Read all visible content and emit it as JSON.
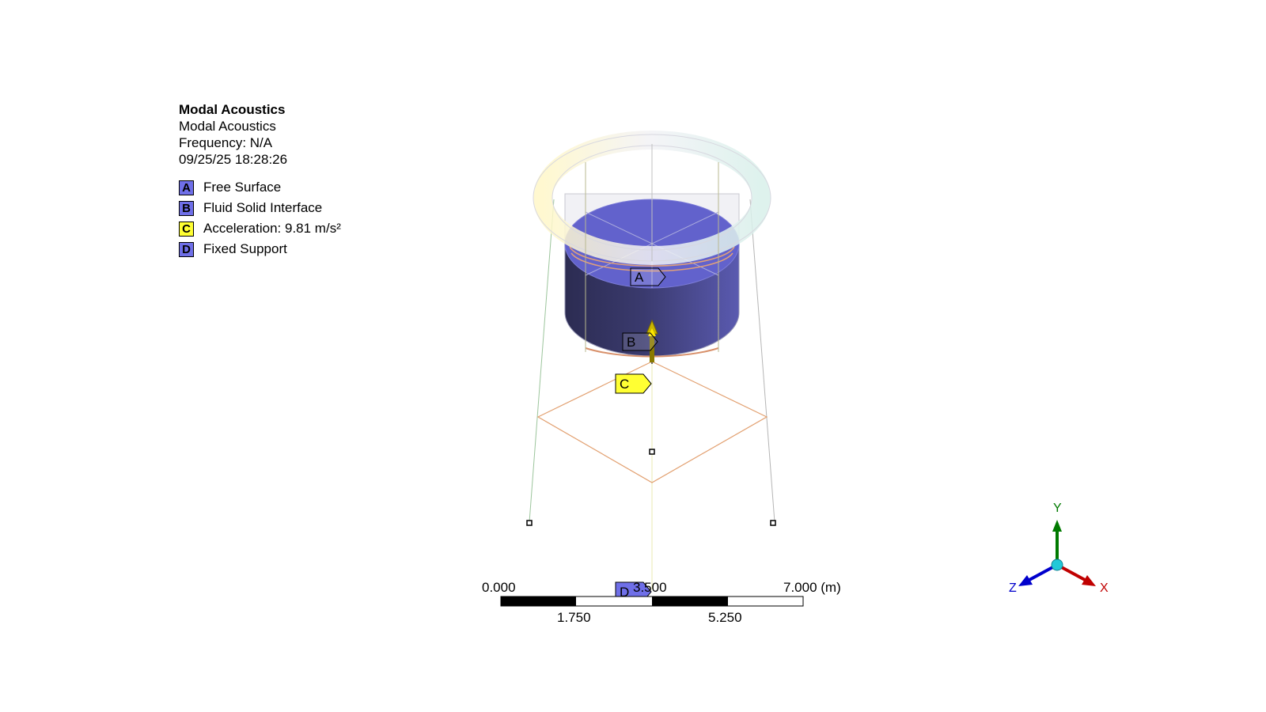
{
  "legend": {
    "title": "Modal Acoustics",
    "subtitle": "Modal Acoustics",
    "frequency": "Frequency: N/A",
    "timestamp": "09/25/25 18:28:26",
    "items": [
      {
        "key": "A",
        "label": "Free Surface",
        "color": "#6f6fe8"
      },
      {
        "key": "B",
        "label": "Fluid Solid Interface",
        "color": "#6f6fe8"
      },
      {
        "key": "C",
        "label": "Acceleration: 9.81 m/s²",
        "color": "#ffff33"
      },
      {
        "key": "D",
        "label": "Fixed Support",
        "color": "#6f6fe8"
      }
    ]
  },
  "tags": {
    "a": "A",
    "b": "B",
    "c": "C",
    "d": "D"
  },
  "scale": {
    "top_labels": [
      "0.000",
      "3.500",
      "7.000 (m)"
    ],
    "bottom_labels": [
      "1.750",
      "5.250"
    ]
  },
  "triad": {
    "x": "X",
    "y": "Y",
    "z": "Z",
    "x_color": "#c00000",
    "y_color": "#007a00",
    "z_color": "#0000cc"
  }
}
